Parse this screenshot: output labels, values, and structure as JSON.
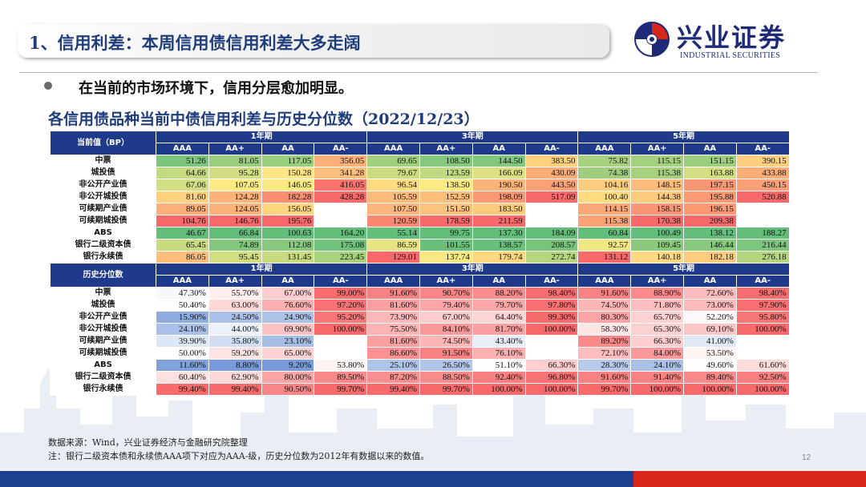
{
  "header": {
    "title": "1、信用利差：本周信用债信用利差大多走阔",
    "logo_cn": "兴业证券",
    "logo_en": "INDUSTRIAL SECURITIES",
    "logo_icon": "swirl-logo-icon"
  },
  "bullet": "在当前的市场环境下，信用分层愈加明显。",
  "subtitle": "各信用债品种当前中债信用利差与历史分位数（2022/12/23）",
  "table": {
    "terms": [
      "1年期",
      "3年期",
      "5年期"
    ],
    "ratings": [
      "AAA",
      "AA+",
      "AA",
      "AA-"
    ],
    "sections": [
      {
        "corner": "当前值（BP）",
        "rows": [
          {
            "label": "中票",
            "values": [
              "51.26",
              "81.05",
              "117.05",
              "356.05",
              "69.65",
              "108.50",
              "144.50",
              "383.50",
              "75.82",
              "115.15",
              "151.15",
              "390.15"
            ]
          },
          {
            "label": "城投债",
            "values": [
              "64.66",
              "95.28",
              "150.28",
              "341.28",
              "79.67",
              "123.59",
              "166.09",
              "430.09",
              "74.38",
              "115.38",
              "163.88",
              "433.88"
            ]
          },
          {
            "label": "非公开产业债",
            "values": [
              "67.06",
              "107.05",
              "146.05",
              "416.05",
              "96.54",
              "138.50",
              "190.50",
              "443.50",
              "104.16",
              "148.15",
              "197.15",
              "450.15"
            ]
          },
          {
            "label": "非公开城投债",
            "values": [
              "81.60",
              "124.28",
              "182.28",
              "428.28",
              "105.59",
              "152.59",
              "198.09",
              "517.09",
              "100.40",
              "144.38",
              "195.88",
              "520.88"
            ]
          },
          {
            "label": "可续期产业债",
            "values": [
              "89.05",
              "124.05",
              "156.05",
              "",
              "107.50",
              "151.50",
              "183.50",
              "",
              "114.15",
              "158.15",
              "196.15",
              ""
            ]
          },
          {
            "label": "可续期城投债",
            "values": [
              "104.76",
              "146.76",
              "195.76",
              "",
              "120.59",
              "178.59",
              "211.59",
              "",
              "115.38",
              "170.38",
              "209.38",
              ""
            ]
          },
          {
            "label": "ABS",
            "values": [
              "46.67",
              "66.84",
              "100.63",
              "164.20",
              "55.14",
              "99.75",
              "137.30",
              "184.09",
              "60.84",
              "100.49",
              "138.12",
              "188.27"
            ]
          },
          {
            "label": "银行二级资本债",
            "values": [
              "65.45",
              "74.89",
              "112.08",
              "175.08",
              "86.59",
              "101.55",
              "138.57",
              "208.57",
              "92.57",
              "109.45",
              "146.44",
              "216.44"
            ]
          },
          {
            "label": "银行永续债",
            "values": [
              "86.05",
              "95.45",
              "131.45",
              "223.45",
              "129.01",
              "137.74",
              "179.74",
              "272.74",
              "131.12",
              "140.18",
              "182.18",
              "276.18"
            ]
          }
        ]
      },
      {
        "corner": "历史分位数",
        "rows": [
          {
            "label": "中票",
            "values": [
              "47.30%",
              "55.70%",
              "67.00%",
              "99.00%",
              "91.60%",
              "90.70%",
              "88.20%",
              "98.40%",
              "91.60%",
              "88.90%",
              "72.60%",
              "98.40%"
            ]
          },
          {
            "label": "城投债",
            "values": [
              "50.40%",
              "63.00%",
              "76.60%",
              "97.20%",
              "81.60%",
              "79.40%",
              "79.70%",
              "97.80%",
              "74.50%",
              "71.80%",
              "73.00%",
              "97.90%"
            ]
          },
          {
            "label": "非公开产业债",
            "values": [
              "15.90%",
              "24.50%",
              "24.90%",
              "95.20%",
              "73.90%",
              "67.00%",
              "64.40%",
              "99.30%",
              "80.30%",
              "65.70%",
              "52.20%",
              "95.80%"
            ]
          },
          {
            "label": "非公开城投债",
            "values": [
              "24.10%",
              "44.00%",
              "69.90%",
              "100.00%",
              "75.50%",
              "84.10%",
              "81.70%",
              "100.00%",
              "58.30%",
              "65.30%",
              "69.10%",
              "100.00%"
            ]
          },
          {
            "label": "可续期产业债",
            "values": [
              "39.90%",
              "35.80%",
              "23.10%",
              "",
              "81.60%",
              "74.50%",
              "43.40%",
              "",
              "89.20%",
              "66.30%",
              "41.00%",
              ""
            ]
          },
          {
            "label": "可续期城投债",
            "values": [
              "50.00%",
              "59.20%",
              "65.00%",
              "",
              "86.60%",
              "91.50%",
              "76.10%",
              "",
              "72.10%",
              "84.00%",
              "53.50%",
              ""
            ]
          },
          {
            "label": "ABS",
            "values": [
              "11.60%",
              "8.80%",
              "9.20%",
              "53.80%",
              "25.10%",
              "26.50%",
              "51.10%",
              "66.30%",
              "28.30%",
              "24.10%",
              "49.60%",
              "61.60%"
            ]
          },
          {
            "label": "银行二级资本债",
            "values": [
              "60.40%",
              "62.90%",
              "80.00%",
              "89.50%",
              "87.20%",
              "88.50%",
              "92.40%",
              "96.80%",
              "91.60%",
              "91.40%",
              "89.40%",
              "92.50%"
            ]
          },
          {
            "label": "银行永续债",
            "values": [
              "99.40%",
              "99.40%",
              "90.50%",
              "99.70%",
              "99.40%",
              "99.70%",
              "100.00%",
              "100.00%",
              "99.70%",
              "100.00%",
              "100.00%",
              "100.00%"
            ]
          }
        ]
      }
    ],
    "colors": {
      "header_bg": "#1f3a8a",
      "low": "#5a86d0",
      "mid": "#ffffff",
      "high": "#f8696b",
      "spread_low": "#63be7b",
      "spread_mid": "#ffeb84",
      "spread_high": "#f8696b"
    }
  },
  "footer": {
    "source": "数据来源：Wind，兴业证券经济与金融研究院整理",
    "note": "注：银行二级资本债和永续债AAA项下对应为AAA-级，历史分位数为2012年有数据以来的数值。",
    "page": "12"
  }
}
